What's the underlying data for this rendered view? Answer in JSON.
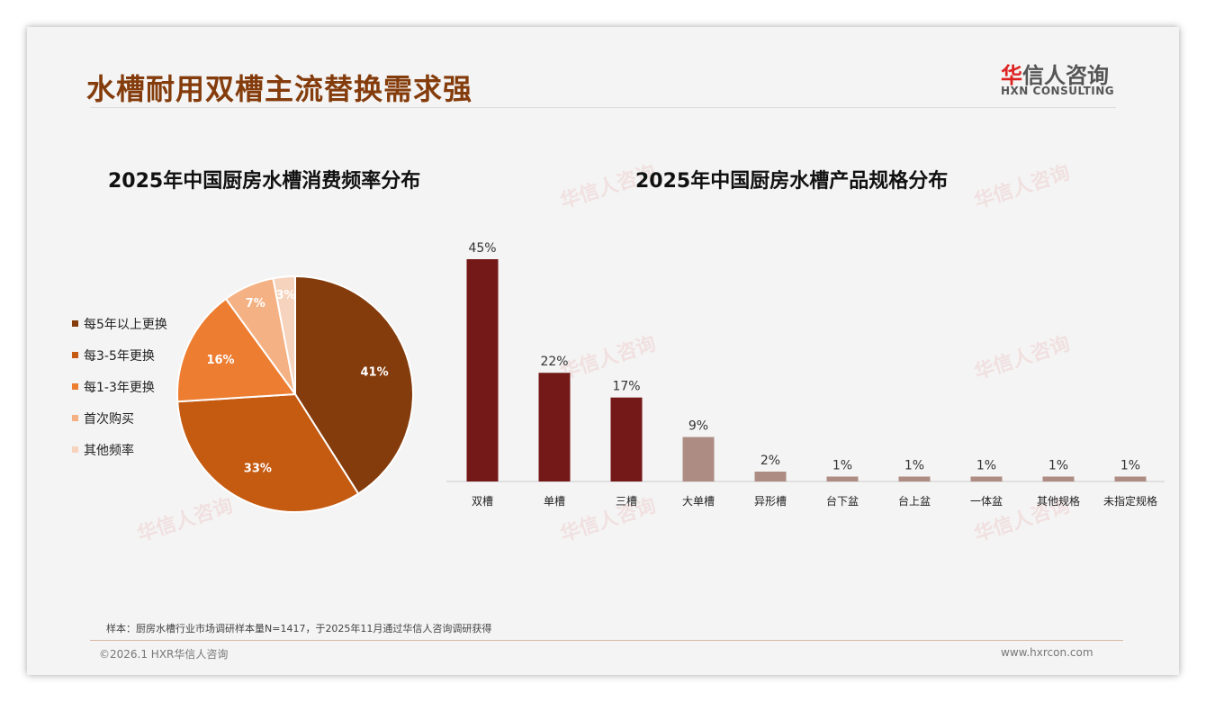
{
  "title": "水槽耐用双槽主流替换需求强",
  "logo": {
    "cn_red": "华",
    "cn_rest": "信人咨询",
    "en": "HXN CONSULTING"
  },
  "footer": {
    "note": "样本：厨房水槽行业市场调研样本量N=1417，于2025年11月通过华信人咨询调研获得",
    "copyright": "©2026.1 HXR华信人咨询",
    "url": "www.hxrcon.com"
  },
  "chart_data": [
    {
      "type": "pie",
      "title": "2025年中国厨房水槽消费频率分布",
      "legend_position": "left",
      "categories": [
        "每5年以上更换",
        "每3-5年更换",
        "每1-3年更换",
        "首次购买",
        "其他频率"
      ],
      "values": [
        41,
        33,
        16,
        7,
        3
      ],
      "labels": [
        "41%",
        "33%",
        "16%",
        "7%",
        "3%"
      ],
      "colors": [
        "#843C0C",
        "#C55A11",
        "#ED7D31",
        "#F4B183",
        "#F6D3BC"
      ]
    },
    {
      "type": "bar",
      "title": "2025年中国厨房水槽产品规格分布",
      "categories": [
        "双槽",
        "单槽",
        "三槽",
        "大单槽",
        "异形槽",
        "台下盆",
        "台上盆",
        "一体盆",
        "其他规格",
        "未指定规格"
      ],
      "values": [
        45,
        22,
        17,
        9,
        2,
        1,
        1,
        1,
        1,
        1
      ],
      "labels": [
        "45%",
        "22%",
        "17%",
        "9%",
        "2%",
        "1%",
        "1%",
        "1%",
        "1%",
        "1%"
      ],
      "colors": [
        "#741818",
        "#741818",
        "#741818",
        "#AD8C84",
        "#AD8C84",
        "#AD8C84",
        "#AD8C84",
        "#AD8C84",
        "#AD8C84",
        "#AD8C84"
      ],
      "ylim": [
        0,
        45
      ],
      "grid": false
    }
  ]
}
